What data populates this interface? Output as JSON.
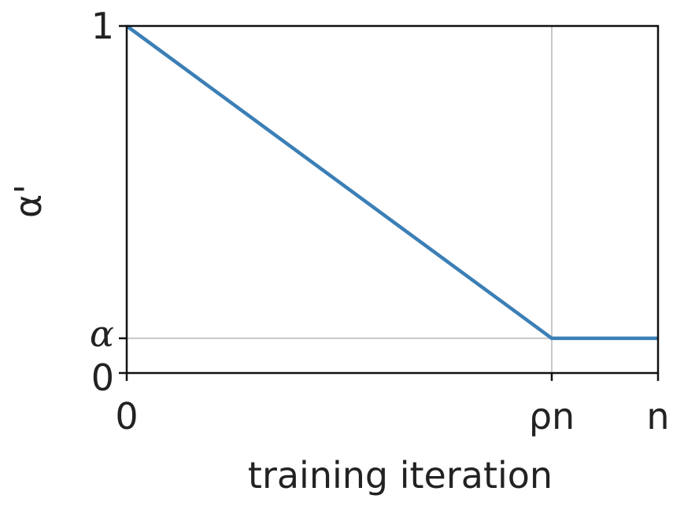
{
  "chart_data": {
    "type": "line",
    "xlabel": "training iteration",
    "ylabel": "α'",
    "x_ticks": [
      {
        "value": 0,
        "label": "0"
      },
      {
        "value": 0.8,
        "label": "ρn"
      },
      {
        "value": 1,
        "label": "n"
      }
    ],
    "y_ticks": [
      {
        "value": 0,
        "label": "0"
      },
      {
        "value": 0.1,
        "label": "α"
      },
      {
        "value": 1,
        "label": "1"
      }
    ],
    "xlim": [
      0,
      1
    ],
    "ylim": [
      0,
      1
    ],
    "reference_lines": [
      {
        "orientation": "vertical",
        "value": 0.8
      },
      {
        "orientation": "horizontal",
        "value": 0.1
      }
    ],
    "series": [
      {
        "x": [
          0,
          0.8,
          1
        ],
        "y": [
          1,
          0.1,
          0.1
        ],
        "color": "#3b7fb6"
      }
    ],
    "grid": false
  }
}
